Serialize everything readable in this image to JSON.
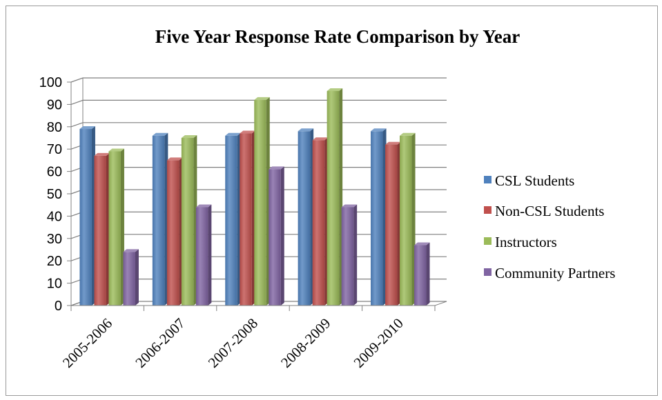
{
  "chart_data": {
    "type": "bar",
    "title": "Five Year Response Rate Comparison by Year",
    "categories": [
      "2005-2006",
      "2006-2007",
      "2007-2008",
      "2008-2009",
      "2009-2010"
    ],
    "series": [
      {
        "name": "CSL Students",
        "color": "#4f81bd",
        "values": [
          79,
          76,
          76,
          78,
          78
        ]
      },
      {
        "name": "Non-CSL Students",
        "color": "#c0504d",
        "values": [
          67,
          65,
          77,
          74,
          72
        ]
      },
      {
        "name": "Instructors",
        "color": "#9bbb59",
        "values": [
          69,
          75,
          92,
          96,
          76
        ]
      },
      {
        "name": "Community Partners",
        "color": "#8064a2",
        "values": [
          24,
          44,
          61,
          44,
          27
        ]
      }
    ],
    "ylim": [
      0,
      100
    ],
    "yticks": [
      0,
      10,
      20,
      30,
      40,
      50,
      60,
      70,
      80,
      90,
      100
    ],
    "xlabel": "",
    "ylabel": "",
    "grid": true,
    "legend_position": "right",
    "style": "3d-clustered-column"
  }
}
